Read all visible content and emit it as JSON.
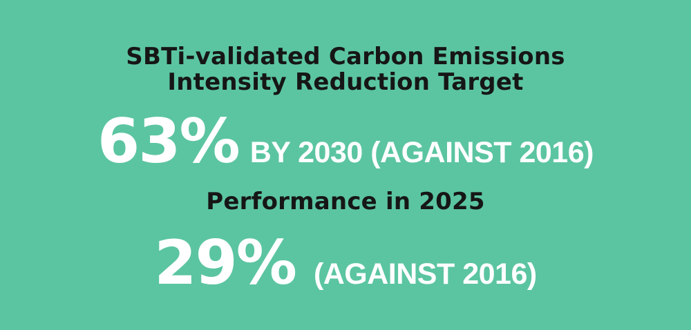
{
  "colors": {
    "background": "#5BC5A1",
    "heading_text": "#161616",
    "stat_text": "#FFFFFF"
  },
  "title": {
    "line1": "SBTi-validated Carbon Emissions",
    "line2": "Intensity Reduction Target"
  },
  "target_stat": {
    "value": "63%",
    "label": "BY 2030 (AGAINST 2016)"
  },
  "performance": {
    "heading": "Performance in 2025",
    "value": "29%",
    "label": "(AGAINST 2016)"
  }
}
